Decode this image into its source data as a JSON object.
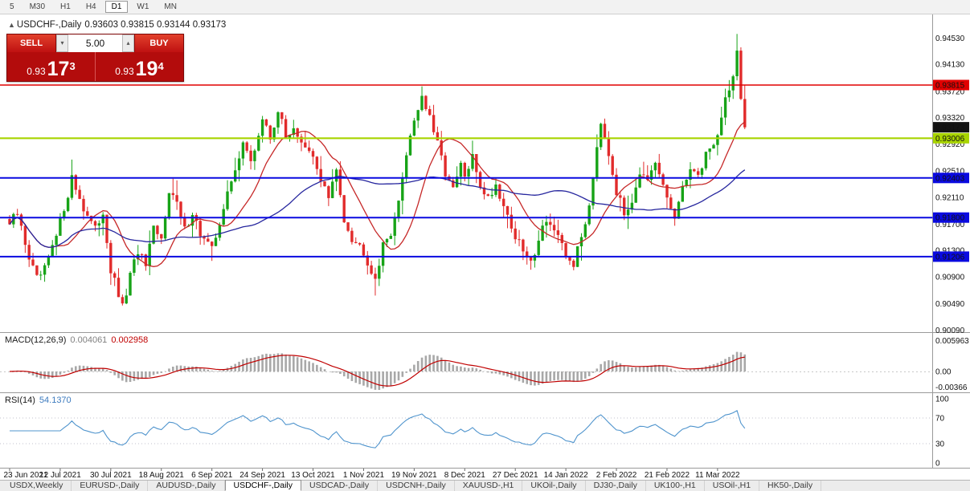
{
  "toolbar": {
    "periods": [
      {
        "label": "5"
      },
      {
        "label": "M30"
      },
      {
        "label": "H1"
      },
      {
        "label": "H4"
      },
      {
        "label": "D1",
        "active": true
      },
      {
        "label": "W1"
      },
      {
        "label": "MN"
      }
    ]
  },
  "chart_header": {
    "collapse_icon": "▲",
    "symbol_label": "USDCHF-,Daily",
    "ohlc_text": "0.93603 0.93815 0.93144 0.93173"
  },
  "trade_panel": {
    "sell_label": "SELL",
    "buy_label": "BUY",
    "volume": "5.00",
    "spin_down_icon": "▾",
    "spin_up_icon": "▴",
    "sell_price_small": "0.93",
    "sell_price_big": "17",
    "sell_price_sup": "3",
    "buy_price_small": "0.93",
    "buy_price_big": "19",
    "buy_price_sup": "4"
  },
  "price_axis": {
    "labels": [
      "0.94530",
      "0.94130",
      "0.93720",
      "0.93320",
      "0.92920",
      "0.92510",
      "0.92110",
      "0.91700",
      "0.91300",
      "0.90900",
      "0.90490",
      "0.90090"
    ]
  },
  "hlines": [
    {
      "price": 0.93815,
      "label": "0.93815",
      "color": "#e00000",
      "text_color": "#ffffff",
      "width": 1.6
    },
    {
      "price": 0.93006,
      "label": "0.93006",
      "color": "#a8d400",
      "text_color": "#1a1a00",
      "width": 2.2
    },
    {
      "price": 0.92403,
      "label": "0.92403",
      "color": "#0a0ae0",
      "text_color": "#ffffff",
      "width": 2.0
    },
    {
      "price": 0.918,
      "label": "0.91800",
      "color": "#0a0ae0",
      "text_color": "#ffffff",
      "width": 2.0
    },
    {
      "price": 0.91206,
      "label": "0.91206",
      "color": "#0a0ae0",
      "text_color": "#ffffff",
      "width": 2.0
    }
  ],
  "current_price": {
    "price": 0.93173,
    "label": "0.93173",
    "bg": "#141414",
    "text_color": "#ffffff"
  },
  "macd": {
    "label": "MACD(12,26,9)",
    "value_main": "0.004061",
    "value_signal": "0.002958",
    "axis": [
      "0.005963",
      "0.00",
      "-0.00366"
    ]
  },
  "rsi": {
    "label": "RSI(14)",
    "value": "54.1370",
    "axis": [
      "100",
      "70",
      "30",
      "0"
    ]
  },
  "dates": [
    "23 Jun 2021",
    "12 Jul 2021",
    "30 Jul 2021",
    "18 Aug 2021",
    "6 Sep 2021",
    "24 Sep 2021",
    "13 Oct 2021",
    "1 Nov 2021",
    "19 Nov 2021",
    "8 Dec 2021",
    "27 Dec 2021",
    "14 Jan 2022",
    "2 Feb 2022",
    "21 Feb 2022",
    "11 Mar 2022"
  ],
  "tabs": [
    {
      "label": "USDX,Weekly"
    },
    {
      "label": "EURUSD-,Daily"
    },
    {
      "label": "AUDUSD-,Daily"
    },
    {
      "label": "USDCHF-,Daily",
      "active": true
    },
    {
      "label": "USDCAD-,Daily"
    },
    {
      "label": "USDCNH-,Daily"
    },
    {
      "label": "XAUUSD-,H1"
    },
    {
      "label": "UKOil-,Daily"
    },
    {
      "label": "DJ30-,Daily"
    },
    {
      "label": "UK100-,H1"
    },
    {
      "label": "USOil-,H1"
    },
    {
      "label": "HK50-,Daily"
    }
  ],
  "colors": {
    "bull": "#17a317",
    "bear": "#e12b2b",
    "ma_fast": "#c62828",
    "ma_slow": "#26269e",
    "macd_hist": "#a8a8a8",
    "macd_signal": "#c00000",
    "rsi_line": "#4f94cd",
    "pane_sep": "#9a9a9a",
    "dashed": "#c0c0cc"
  },
  "chart_data": {
    "type": "candlestick",
    "symbol": "USDCHF-",
    "timeframe": "Daily",
    "ohlc_display": {
      "open": 0.93603,
      "high": 0.93815,
      "low": 0.93144,
      "close": 0.93173
    },
    "candle_count": 190,
    "x_tick_interval": 13,
    "ylim": [
      0.9006,
      0.9489
    ],
    "levels": [
      0.93815,
      0.93006,
      0.92403,
      0.918,
      0.91206
    ],
    "indicators": {
      "macd_main": 0.004061,
      "macd_signal": 0.002958,
      "rsi14": 54.137
    },
    "price_anchors": [
      [
        0,
        0.917
      ],
      [
        2,
        0.9185
      ],
      [
        5,
        0.912
      ],
      [
        7,
        0.9085
      ],
      [
        9,
        0.91
      ],
      [
        12,
        0.915
      ],
      [
        16,
        0.924
      ],
      [
        19,
        0.9195
      ],
      [
        22,
        0.916
      ],
      [
        24,
        0.919
      ],
      [
        26,
        0.91
      ],
      [
        29,
        0.9042
      ],
      [
        31,
        0.909
      ],
      [
        33,
        0.913
      ],
      [
        35,
        0.9105
      ],
      [
        37,
        0.916
      ],
      [
        39,
        0.9145
      ],
      [
        41,
        0.9225
      ],
      [
        43,
        0.92
      ],
      [
        45,
        0.916
      ],
      [
        47,
        0.919
      ],
      [
        49,
        0.9155
      ],
      [
        52,
        0.913
      ],
      [
        54,
        0.9175
      ],
      [
        56,
        0.9215
      ],
      [
        58,
        0.925
      ],
      [
        60,
        0.93
      ],
      [
        62,
        0.926
      ],
      [
        65,
        0.933
      ],
      [
        67,
        0.93
      ],
      [
        69,
        0.9345
      ],
      [
        71,
        0.93
      ],
      [
        73,
        0.932
      ],
      [
        75,
        0.929
      ],
      [
        78,
        0.927
      ],
      [
        80,
        0.924
      ],
      [
        82,
        0.921
      ],
      [
        84,
        0.925
      ],
      [
        86,
        0.918
      ],
      [
        88,
        0.915
      ],
      [
        91,
        0.913
      ],
      [
        93,
        0.91
      ],
      [
        94,
        0.909
      ],
      [
        96,
        0.9135
      ],
      [
        98,
        0.916
      ],
      [
        100,
        0.92
      ],
      [
        102,
        0.928
      ],
      [
        104,
        0.933
      ],
      [
        106,
        0.9365
      ],
      [
        108,
        0.933
      ],
      [
        110,
        0.929
      ],
      [
        112,
        0.925
      ],
      [
        114,
        0.922
      ],
      [
        116,
        0.926
      ],
      [
        117,
        0.924
      ],
      [
        119,
        0.927
      ],
      [
        121,
        0.923
      ],
      [
        123,
        0.921
      ],
      [
        125,
        0.923
      ],
      [
        127,
        0.92
      ],
      [
        130,
        0.915
      ],
      [
        132,
        0.913
      ],
      [
        134,
        0.911
      ],
      [
        136,
        0.915
      ],
      [
        138,
        0.918
      ],
      [
        140,
        0.916
      ],
      [
        143,
        0.912
      ],
      [
        145,
        0.911
      ],
      [
        147,
        0.915
      ],
      [
        149,
        0.92
      ],
      [
        151,
        0.929
      ],
      [
        152,
        0.933
      ],
      [
        154,
        0.928
      ],
      [
        156,
        0.922
      ],
      [
        158,
        0.9185
      ],
      [
        160,
        0.921
      ],
      [
        162,
        0.925
      ],
      [
        164,
        0.923
      ],
      [
        166,
        0.926
      ],
      [
        169,
        0.921
      ],
      [
        171,
        0.918
      ],
      [
        173,
        0.922
      ],
      [
        175,
        0.926
      ],
      [
        177,
        0.924
      ],
      [
        179,
        0.928
      ],
      [
        181,
        0.929
      ],
      [
        182,
        0.931
      ],
      [
        184,
        0.936
      ],
      [
        186,
        0.9395
      ],
      [
        187,
        0.9432
      ],
      [
        188,
        0.936
      ],
      [
        189,
        0.93173
      ]
    ],
    "last_candle": {
      "o": 0.93603,
      "h": 0.93815,
      "l": 0.93144,
      "c": 0.93173
    },
    "spike_high_index": 187,
    "spike_high": 0.94592
  }
}
